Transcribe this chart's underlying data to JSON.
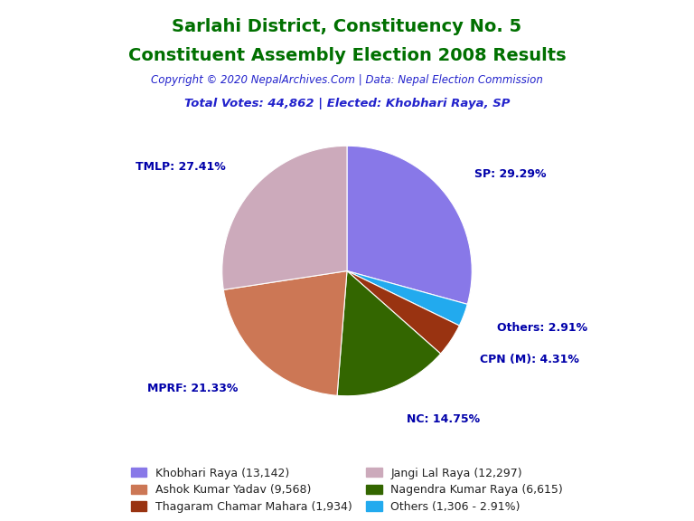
{
  "title_line1": "Sarlahi District, Constituency No. 5",
  "title_line2": "Constituent Assembly Election 2008 Results",
  "title_color": "#007000",
  "copyright_text": "Copyright © 2020 NepalArchives.Com | Data: Nepal Election Commission",
  "copyright_color": "#2222CC",
  "total_votes_text": "Total Votes: 44,862 | Elected: Khobhari Raya, SP",
  "total_votes_color": "#2222CC",
  "slices": [
    {
      "label": "SP",
      "value": 13142,
      "pct": 29.29,
      "color": "#8878E8"
    },
    {
      "label": "Others",
      "value": 1306,
      "pct": 2.91,
      "color": "#22AAEE"
    },
    {
      "label": "CPN (M)",
      "value": 1934,
      "pct": 4.31,
      "color": "#993311"
    },
    {
      "label": "NC",
      "value": 6615,
      "pct": 14.75,
      "color": "#336600"
    },
    {
      "label": "MPRF",
      "value": 9568,
      "pct": 21.33,
      "color": "#CC7755"
    },
    {
      "label": "TMLP",
      "value": 12297,
      "pct": 27.41,
      "color": "#CCAABB"
    }
  ],
  "pie_labels": [
    {
      "text": "SP: 29.29%",
      "r": 1.3,
      "va": "bottom"
    },
    {
      "text": "Others: 2.91%",
      "r": 1.28,
      "va": "center"
    },
    {
      "text": "CPN (M): 4.31%",
      "r": 1.28,
      "va": "center"
    },
    {
      "text": "NC: 14.75%",
      "r": 1.28,
      "va": "center"
    },
    {
      "text": "MPRF: 21.33%",
      "r": 1.28,
      "va": "top"
    },
    {
      "text": "TMLP: 27.41%",
      "r": 1.28,
      "va": "center"
    }
  ],
  "label_color": "#0000AA",
  "legend_entries": [
    {
      "label": "Khobhari Raya (13,142)",
      "color": "#8878E8"
    },
    {
      "label": "Ashok Kumar Yadav (9,568)",
      "color": "#CC7755"
    },
    {
      "label": "Thagaram Chamar Mahara (1,934)",
      "color": "#993311"
    },
    {
      "label": "Jangi Lal Raya (12,297)",
      "color": "#CCAABB"
    },
    {
      "label": "Nagendra Kumar Raya (6,615)",
      "color": "#336600"
    },
    {
      "label": "Others (1,306 - 2.91%)",
      "color": "#22AAEE"
    }
  ],
  "background_color": "#FFFFFF"
}
